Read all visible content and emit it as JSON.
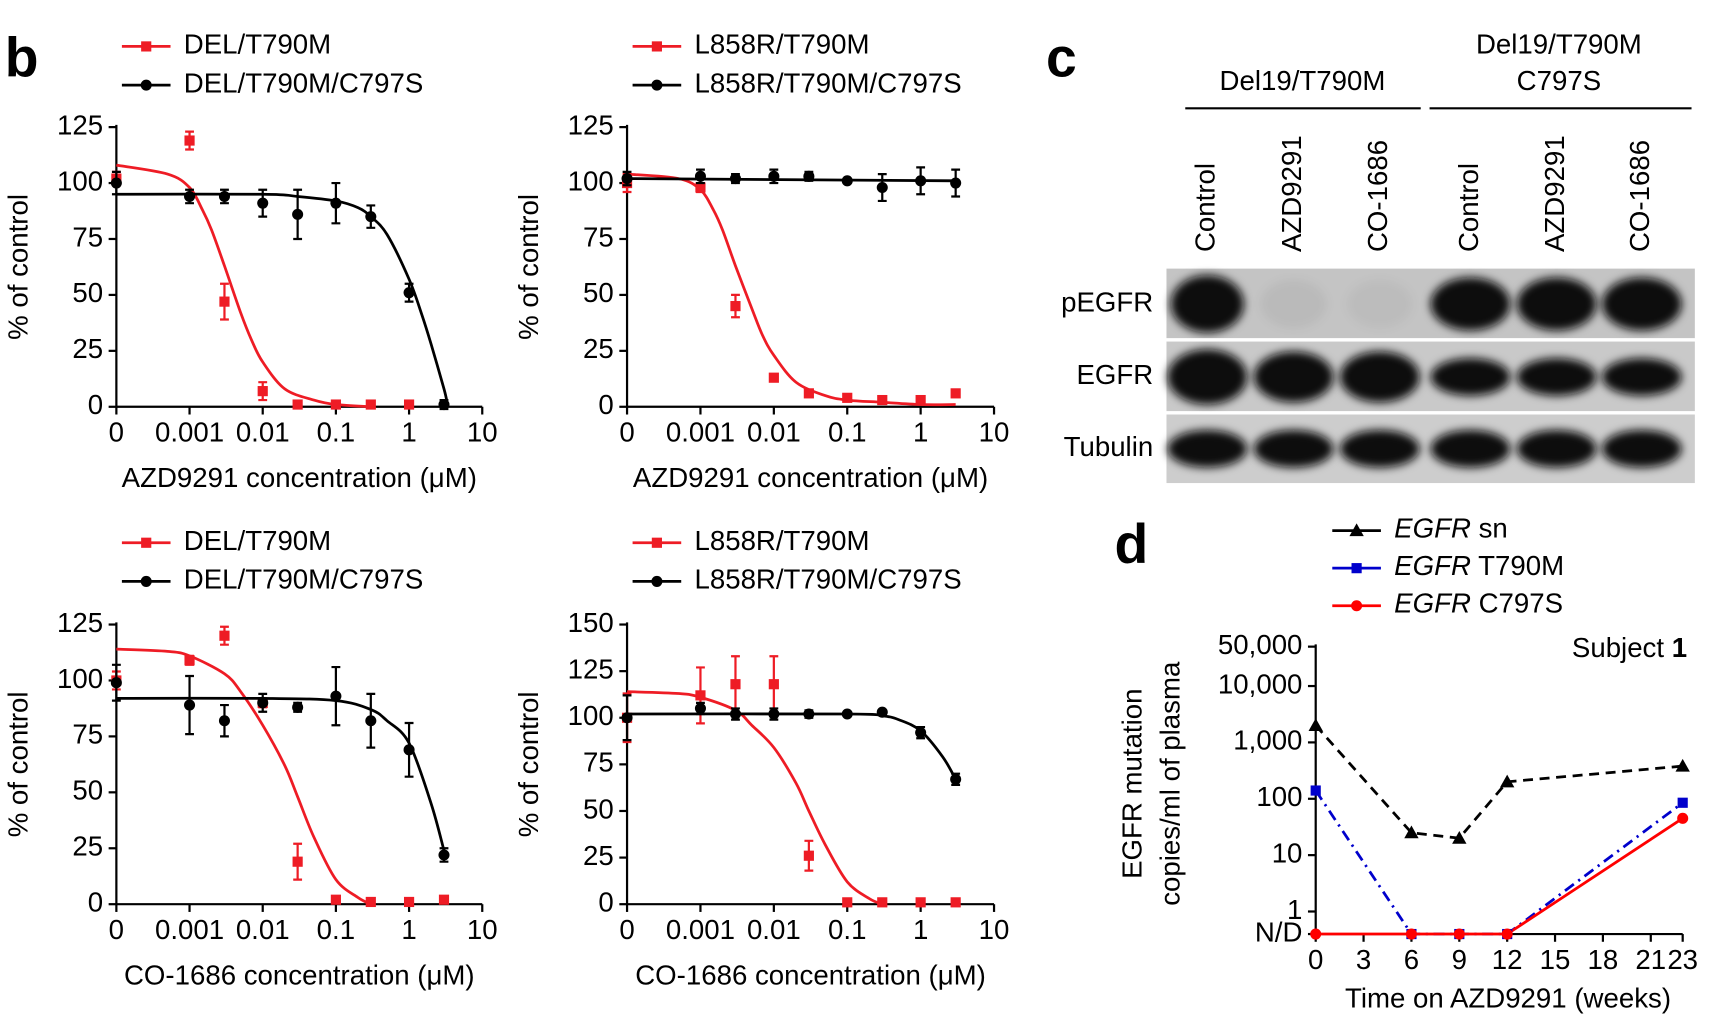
{
  "panel_labels": [
    "b",
    "c",
    "d"
  ],
  "blot": {
    "groups": [
      {
        "lines": [
          "Del19/T790M"
        ]
      },
      {
        "lines": [
          "Del19/T790M",
          "C797S"
        ]
      }
    ],
    "lanes": [
      "Control",
      "AZD9291",
      "CO-1686",
      "Control",
      "AZD9291",
      "CO-1686"
    ],
    "rows": [
      "pEGFR",
      "EGFR",
      "Tubulin"
    ]
  },
  "chart_data": [
    {
      "type": "dose_response",
      "xscale": "log",
      "xlabel": "AZD9291 concentration (μM)",
      "ylabel": "% of control",
      "xlim": [
        0,
        10
      ],
      "xticks": [
        0,
        0.001,
        0.01,
        0.1,
        1,
        10
      ],
      "ylim": [
        0,
        125
      ],
      "yticks": [
        0,
        25,
        50,
        75,
        100,
        125
      ],
      "series": [
        {
          "name": "DEL/T790M",
          "color": "#ee1c25",
          "marker": "square",
          "x": [
            0,
            0.001,
            0.003,
            0.01,
            0.03,
            0.1,
            0.3,
            1
          ],
          "values": [
            102,
            119,
            47,
            7,
            1,
            1,
            1,
            1
          ],
          "errors": [
            3,
            4,
            8,
            4,
            1,
            1,
            1,
            1
          ],
          "fit_x": [
            0,
            0.0005,
            0.001,
            0.0015,
            0.002,
            0.003,
            0.005,
            0.007,
            0.01,
            0.02,
            0.05,
            0.1,
            0.3
          ],
          "fit_values": [
            108,
            104,
            98,
            88,
            79,
            63,
            42,
            30,
            20,
            8,
            3,
            1,
            0
          ]
        },
        {
          "name": "DEL/T790M/C797S",
          "color": "#000000",
          "marker": "circle",
          "x": [
            0,
            0.001,
            0.003,
            0.01,
            0.03,
            0.1,
            0.3,
            1,
            3
          ],
          "values": [
            100,
            94,
            94,
            91,
            86,
            91,
            85,
            51,
            1
          ],
          "errors": [
            5,
            3,
            3,
            6,
            11,
            9,
            5,
            4,
            2
          ],
          "fit_x": [
            0,
            0.01,
            0.03,
            0.1,
            0.2,
            0.3,
            0.5,
            1,
            1.5,
            2,
            3,
            3.3
          ],
          "fit_values": [
            95,
            95,
            94,
            92,
            89,
            85,
            77,
            57,
            41,
            28,
            8,
            2
          ]
        }
      ]
    },
    {
      "type": "dose_response",
      "xscale": "log",
      "xlabel": "AZD9291 concentration (μM)",
      "ylabel": "% of control",
      "xlim": [
        0,
        10
      ],
      "xticks": [
        0,
        0.001,
        0.01,
        0.1,
        1,
        10
      ],
      "ylim": [
        0,
        125
      ],
      "yticks": [
        0,
        25,
        50,
        75,
        100,
        125
      ],
      "series": [
        {
          "name": "L858R/T790M",
          "color": "#ee1c25",
          "marker": "square",
          "x": [
            0,
            0.001,
            0.003,
            0.01,
            0.03,
            0.1,
            0.3,
            1,
            3
          ],
          "values": [
            100,
            98,
            45,
            13,
            6,
            4,
            3,
            3,
            6
          ],
          "errors": [
            4,
            2,
            5,
            1,
            1,
            1,
            1,
            1,
            1
          ],
          "fit_x": [
            0,
            0.0005,
            0.001,
            0.0015,
            0.002,
            0.003,
            0.005,
            0.007,
            0.01,
            0.02,
            0.05,
            0.1,
            0.3,
            1,
            3
          ],
          "fit_values": [
            104,
            102,
            97,
            88,
            79,
            63,
            44,
            32,
            23,
            11,
            5,
            3,
            2,
            1,
            1
          ]
        },
        {
          "name": "L858R/T790M/C797S",
          "color": "#000000",
          "marker": "circle",
          "x": [
            0,
            0.001,
            0.003,
            0.01,
            0.03,
            0.1,
            0.3,
            1,
            3
          ],
          "values": [
            102,
            103,
            102,
            103,
            103,
            101,
            98,
            101,
            100
          ],
          "errors": [
            3,
            3,
            2,
            3,
            2,
            1,
            6,
            6,
            6
          ],
          "fit_x": [
            0,
            3
          ],
          "fit_values": [
            102,
            101
          ]
        }
      ]
    },
    {
      "type": "dose_response",
      "xscale": "log",
      "xlabel": "CO-1686 concentration (μM)",
      "ylabel": "% of control",
      "xlim": [
        0,
        10
      ],
      "xticks": [
        0,
        0.001,
        0.01,
        0.1,
        1,
        10
      ],
      "ylim": [
        0,
        125
      ],
      "yticks": [
        0,
        25,
        50,
        75,
        100,
        125
      ],
      "series": [
        {
          "name": "DEL/T790M",
          "color": "#ee1c25",
          "marker": "square",
          "x": [
            0,
            0.001,
            0.003,
            0.01,
            0.03,
            0.1,
            0.3,
            1,
            3
          ],
          "values": [
            100,
            109,
            120,
            90,
            19,
            2,
            1,
            1,
            2
          ],
          "errors": [
            4,
            2,
            4,
            2,
            8,
            1,
            1,
            1,
            1
          ],
          "fit_x": [
            0,
            0.0005,
            0.001,
            0.003,
            0.005,
            0.01,
            0.02,
            0.03,
            0.05,
            0.1,
            0.2,
            0.3
          ],
          "fit_values": [
            114,
            113,
            111,
            103,
            95,
            80,
            62,
            48,
            30,
            11,
            3,
            0
          ]
        },
        {
          "name": "DEL/T790M/C797S",
          "color": "#000000",
          "marker": "circle",
          "x": [
            0,
            0.001,
            0.003,
            0.01,
            0.03,
            0.1,
            0.3,
            1,
            3
          ],
          "values": [
            99,
            89,
            82,
            90,
            88,
            93,
            82,
            69,
            22
          ],
          "errors": [
            8,
            13,
            7,
            4,
            2,
            13,
            12,
            12,
            3
          ],
          "fit_x": [
            0,
            0.01,
            0.1,
            0.3,
            0.5,
            1,
            2,
            3
          ],
          "fit_values": [
            92,
            92,
            91,
            87,
            82,
            72,
            45,
            24
          ]
        }
      ]
    },
    {
      "type": "dose_response",
      "xscale": "log",
      "xlabel": "CO-1686 concentration (μM)",
      "ylabel": "% of control",
      "xlim": [
        0,
        10
      ],
      "xticks": [
        0,
        0.001,
        0.01,
        0.1,
        1,
        10
      ],
      "ylim": [
        0,
        150
      ],
      "yticks": [
        0,
        25,
        50,
        75,
        100,
        125,
        150
      ],
      "series": [
        {
          "name": "L858R/T790M",
          "color": "#ee1c25",
          "marker": "square",
          "x": [
            0,
            0.001,
            0.003,
            0.01,
            0.03,
            0.1,
            0.3,
            1,
            3
          ],
          "values": [
            100,
            112,
            118,
            118,
            26,
            1,
            1,
            1,
            1
          ],
          "errors": [
            13,
            15,
            15,
            15,
            8,
            1,
            1,
            1,
            1
          ],
          "fit_x": [
            0,
            0.0005,
            0.001,
            0.003,
            0.005,
            0.01,
            0.02,
            0.03,
            0.05,
            0.1,
            0.2,
            0.3
          ],
          "fit_values": [
            114,
            113,
            111,
            104,
            96,
            84,
            65,
            50,
            32,
            12,
            3,
            0
          ]
        },
        {
          "name": "L858R/T790M/C797S",
          "color": "#000000",
          "marker": "circle",
          "x": [
            0,
            0.001,
            0.003,
            0.01,
            0.03,
            0.1,
            0.3,
            1,
            3
          ],
          "values": [
            100,
            105,
            102,
            102,
            102,
            102,
            103,
            92,
            67
          ],
          "errors": [
            12,
            3,
            3,
            3,
            2,
            1,
            1,
            3,
            3
          ],
          "fit_x": [
            0,
            0.1,
            0.3,
            0.5,
            1,
            2,
            3
          ],
          "fit_values": [
            102,
            102,
            101,
            99,
            93,
            79,
            67
          ]
        }
      ]
    },
    {
      "type": "line",
      "yscale": "log",
      "title": "Subject 1",
      "xlabel": "Time on AZD9291 (weeks)",
      "ylabel": [
        "EGFR mutation",
        "copies/ml of plasma"
      ],
      "xlim": [
        0,
        23
      ],
      "xticks": [
        0,
        3,
        6,
        9,
        12,
        15,
        18,
        21,
        23
      ],
      "ylim": [
        0,
        50000
      ],
      "yticks": [
        {
          "value": 0,
          "label": "N/D"
        },
        1,
        10,
        100,
        {
          "value": 1000,
          "label": "1,000"
        },
        {
          "value": 10000,
          "label": "10,000"
        },
        {
          "value": 50000,
          "label": "50,000"
        }
      ],
      "x": [
        0,
        6,
        9,
        12,
        23
      ],
      "series": [
        {
          "name": "EGFR sn",
          "color": "#000000",
          "marker": "triangle",
          "linestyle": "dashed",
          "values": [
            2000,
            25,
            20,
            200,
            380
          ]
        },
        {
          "name": "EGFR T790M",
          "color": "#0000cc",
          "marker": "square",
          "linestyle": "dashdot",
          "values": [
            140,
            0,
            0,
            0,
            85
          ]
        },
        {
          "name": "EGFR C797S",
          "color": "#ff0000",
          "marker": "circle",
          "linestyle": "solid",
          "values": [
            0,
            0,
            0,
            0,
            45
          ]
        }
      ]
    }
  ]
}
